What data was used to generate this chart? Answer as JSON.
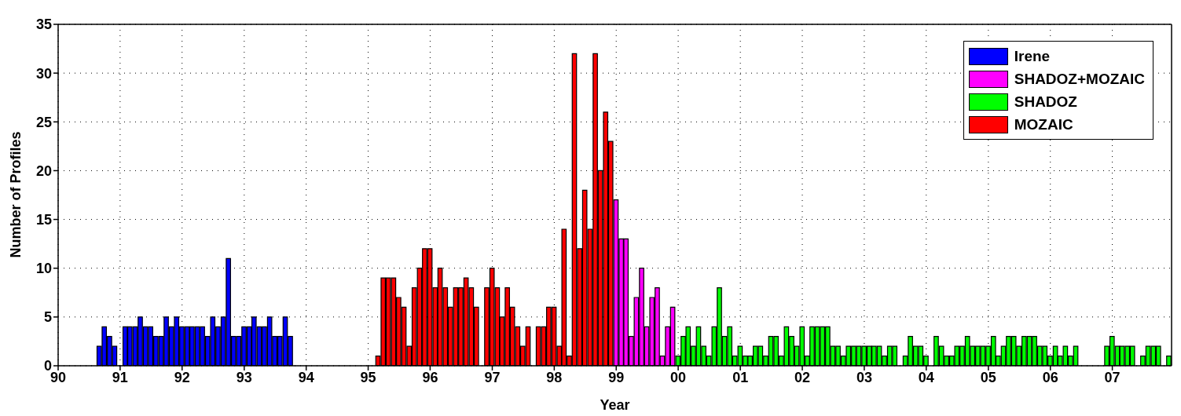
{
  "chart_data": {
    "type": "bar",
    "xlabel": "Year",
    "ylabel": "Number of Profiles",
    "series": [
      {
        "name": "Irene",
        "color": "#0000ff",
        "x": [
          "1990-09",
          "1990-10",
          "1990-11",
          "1990-12",
          "1991-02",
          "1991-03",
          "1991-04",
          "1991-05",
          "1991-06",
          "1991-07",
          "1991-08",
          "1991-09",
          "1991-10",
          "1991-11",
          "1991-12",
          "1992-01",
          "1992-02",
          "1992-03",
          "1992-04",
          "1992-05",
          "1992-06",
          "1992-07",
          "1992-08",
          "1992-09",
          "1992-10",
          "1992-11",
          "1992-12",
          "1993-01",
          "1993-02",
          "1993-03",
          "1993-04",
          "1993-05",
          "1993-06",
          "1993-07",
          "1993-08",
          "1993-09",
          "1993-10"
        ],
        "values": [
          2,
          4,
          3,
          2,
          4,
          4,
          4,
          5,
          4,
          4,
          3,
          3,
          5,
          4,
          5,
          4,
          4,
          4,
          4,
          4,
          3,
          5,
          4,
          5,
          11,
          3,
          3,
          4,
          4,
          5,
          4,
          4,
          5,
          3,
          3,
          5,
          3
        ]
      },
      {
        "name": "SHADOZ+MOZAIC",
        "color": "#ff00ff",
        "x": [
          "1999-01",
          "1999-02",
          "1999-03",
          "1999-04",
          "1999-05",
          "1999-06",
          "1999-07",
          "1999-08",
          "1999-09",
          "1999-10",
          "1999-11",
          "1999-12"
        ],
        "values": [
          17,
          13,
          13,
          3,
          7,
          10,
          4,
          7,
          8,
          1,
          4,
          6
        ]
      },
      {
        "name": "SHADOZ",
        "color": "#00ff00",
        "x": [
          "2000-01",
          "2000-02",
          "2000-03",
          "2000-04",
          "2000-05",
          "2000-06",
          "2000-07",
          "2000-08",
          "2000-09",
          "2000-10",
          "2000-11",
          "2000-12",
          "2001-01",
          "2001-02",
          "2001-03",
          "2001-04",
          "2001-05",
          "2001-06",
          "2001-07",
          "2001-08",
          "2001-09",
          "2001-10",
          "2001-11",
          "2001-12",
          "2002-01",
          "2002-02",
          "2002-03",
          "2002-04",
          "2002-05",
          "2002-06",
          "2002-07",
          "2002-08",
          "2002-09",
          "2002-10",
          "2002-11",
          "2002-12",
          "2003-01",
          "2003-02",
          "2003-03",
          "2003-04",
          "2003-05",
          "2003-06",
          "2003-07",
          "2003-08",
          "2003-09",
          "2003-10",
          "2003-11",
          "2003-12",
          "2004-01",
          "2004-02",
          "2004-03",
          "2004-04",
          "2004-05",
          "2004-06",
          "2004-07",
          "2004-08",
          "2004-09",
          "2004-10",
          "2004-11",
          "2004-12",
          "2005-01",
          "2005-02",
          "2005-03",
          "2005-04",
          "2005-05",
          "2005-06",
          "2005-07",
          "2005-08",
          "2005-09",
          "2005-10",
          "2005-11",
          "2005-12",
          "2006-01",
          "2006-02",
          "2006-03",
          "2006-04",
          "2006-05",
          "2006-06",
          "2006-12",
          "2007-01",
          "2007-02",
          "2007-03",
          "2007-04",
          "2007-05",
          "2007-06",
          "2007-07",
          "2007-08",
          "2007-09",
          "2007-10",
          "2007-11",
          "2007-12"
        ],
        "values": [
          1,
          3,
          4,
          2,
          4,
          2,
          1,
          4,
          8,
          3,
          4,
          1,
          2,
          1,
          1,
          2,
          2,
          1,
          3,
          3,
          1,
          4,
          3,
          2,
          4,
          1,
          4,
          4,
          4,
          4,
          2,
          2,
          1,
          2,
          2,
          2,
          2,
          2,
          2,
          2,
          1,
          2,
          2,
          null,
          1,
          3,
          2,
          2,
          1,
          null,
          3,
          2,
          1,
          1,
          2,
          2,
          3,
          2,
          2,
          2,
          2,
          3,
          1,
          2,
          3,
          3,
          2,
          3,
          3,
          3,
          2,
          2,
          1,
          2,
          1,
          2,
          1,
          2,
          2,
          3,
          2,
          2,
          2,
          2,
          null,
          1,
          2,
          2,
          2,
          null,
          1
        ]
      },
      {
        "name": "MOZAIC",
        "color": "#ff0000",
        "x": [
          "1995-03",
          "1995-04",
          "1995-05",
          "1995-06",
          "1995-07",
          "1995-08",
          "1995-09",
          "1995-10",
          "1995-11",
          "1995-12",
          "1996-01",
          "1996-02",
          "1996-03",
          "1996-04",
          "1996-05",
          "1996-06",
          "1996-07",
          "1996-08",
          "1996-09",
          "1996-10",
          "1996-12",
          "1997-01",
          "1997-02",
          "1997-03",
          "1997-04",
          "1997-05",
          "1997-06",
          "1997-07",
          "1997-08",
          "1997-10",
          "1997-11",
          "1997-12",
          "1998-01",
          "1998-02",
          "1998-03",
          "1998-04",
          "1998-05",
          "1998-06",
          "1998-07",
          "1998-08",
          "1998-09",
          "1998-10",
          "1998-11",
          "1998-12"
        ],
        "values": [
          1,
          9,
          9,
          9,
          7,
          6,
          2,
          8,
          10,
          12,
          12,
          8,
          10,
          8,
          6,
          8,
          8,
          9,
          8,
          6,
          8,
          10,
          8,
          5,
          8,
          6,
          4,
          2,
          4,
          4,
          4,
          6,
          6,
          2,
          14,
          1,
          32,
          12,
          18,
          14,
          32,
          20,
          26,
          23
        ]
      }
    ],
    "xlim": [
      "1990",
      "2007-12-16"
    ],
    "xticks": [
      {
        "value": "1990",
        "label": "90"
      },
      {
        "value": "1991",
        "label": "91"
      },
      {
        "value": "1992",
        "label": "92"
      },
      {
        "value": "1993",
        "label": "93"
      },
      {
        "value": "1994",
        "label": "94"
      },
      {
        "value": "1995",
        "label": "95"
      },
      {
        "value": "1996",
        "label": "96"
      },
      {
        "value": "1997",
        "label": "97"
      },
      {
        "value": "1998",
        "label": "98"
      },
      {
        "value": "1999",
        "label": "99"
      },
      {
        "value": "2000",
        "label": "00"
      },
      {
        "value": "2001",
        "label": "01"
      },
      {
        "value": "2002",
        "label": "02"
      },
      {
        "value": "2003",
        "label": "03"
      },
      {
        "value": "2004",
        "label": "04"
      },
      {
        "value": "2005",
        "label": "05"
      },
      {
        "value": "2006",
        "label": "06"
      },
      {
        "value": "2007",
        "label": "07"
      }
    ],
    "ylim": [
      0,
      35
    ],
    "yticks": [
      0,
      5,
      10,
      15,
      20,
      25,
      30,
      35
    ],
    "grid": true,
    "legend": "top right"
  }
}
